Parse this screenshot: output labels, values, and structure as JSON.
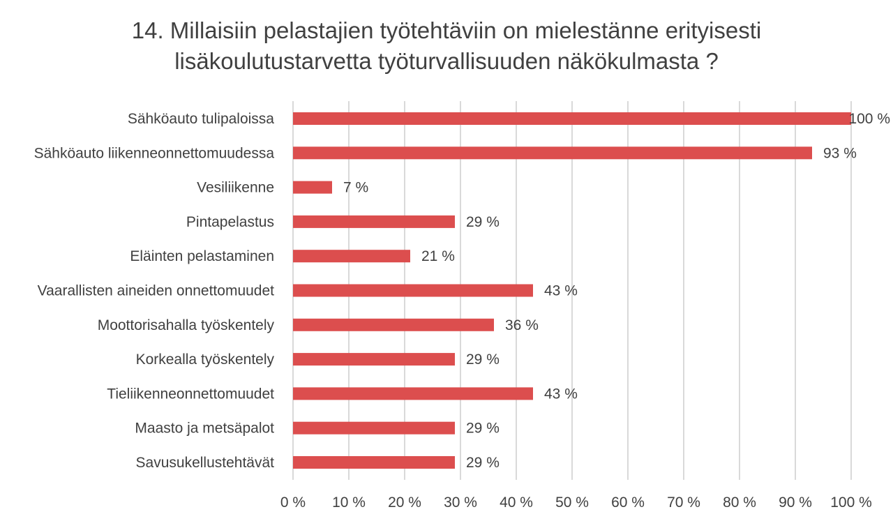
{
  "chart_data": {
    "type": "bar",
    "orientation": "horizontal",
    "title_lines": [
      "14. Millaisiin pelastajien työtehtäviin on mielestänne erityisesti",
      "lisäkoulutustarvetta työturvallisuuden näkökulmasta ?"
    ],
    "categories": [
      "Sähköauto tulipaloissa",
      "Sähköauto liikenneonnettomuudessa",
      "Vesiliikenne",
      "Pintapelastus",
      "Eläinten pelastaminen",
      "Vaarallisten aineiden onnettomuudet",
      "Moottorisahalla työskentely",
      "Korkealla työskentely",
      "Tieliikenneonnettomuudet",
      "Maasto ja metsäpalot",
      "Savusukellustehtävät"
    ],
    "values": [
      100,
      93,
      7,
      29,
      21,
      43,
      36,
      29,
      43,
      29,
      29
    ],
    "data_labels": [
      "100 %",
      "93 %",
      "7 %",
      "29 %",
      "21 %",
      "43 %",
      "36 %",
      "29 %",
      "43 %",
      "29 %",
      "29 %"
    ],
    "xlim": [
      0,
      100
    ],
    "xticks": [
      "0 %",
      "10 %",
      "20 %",
      "30 %",
      "40 %",
      "50 %",
      "60 %",
      "70 %",
      "80 %",
      "90 %",
      "100 %"
    ],
    "grid": true,
    "legend": "none",
    "bar_color": "#DC4E4E",
    "grid_color": "#D9D9D9",
    "text_color": "#404040"
  }
}
